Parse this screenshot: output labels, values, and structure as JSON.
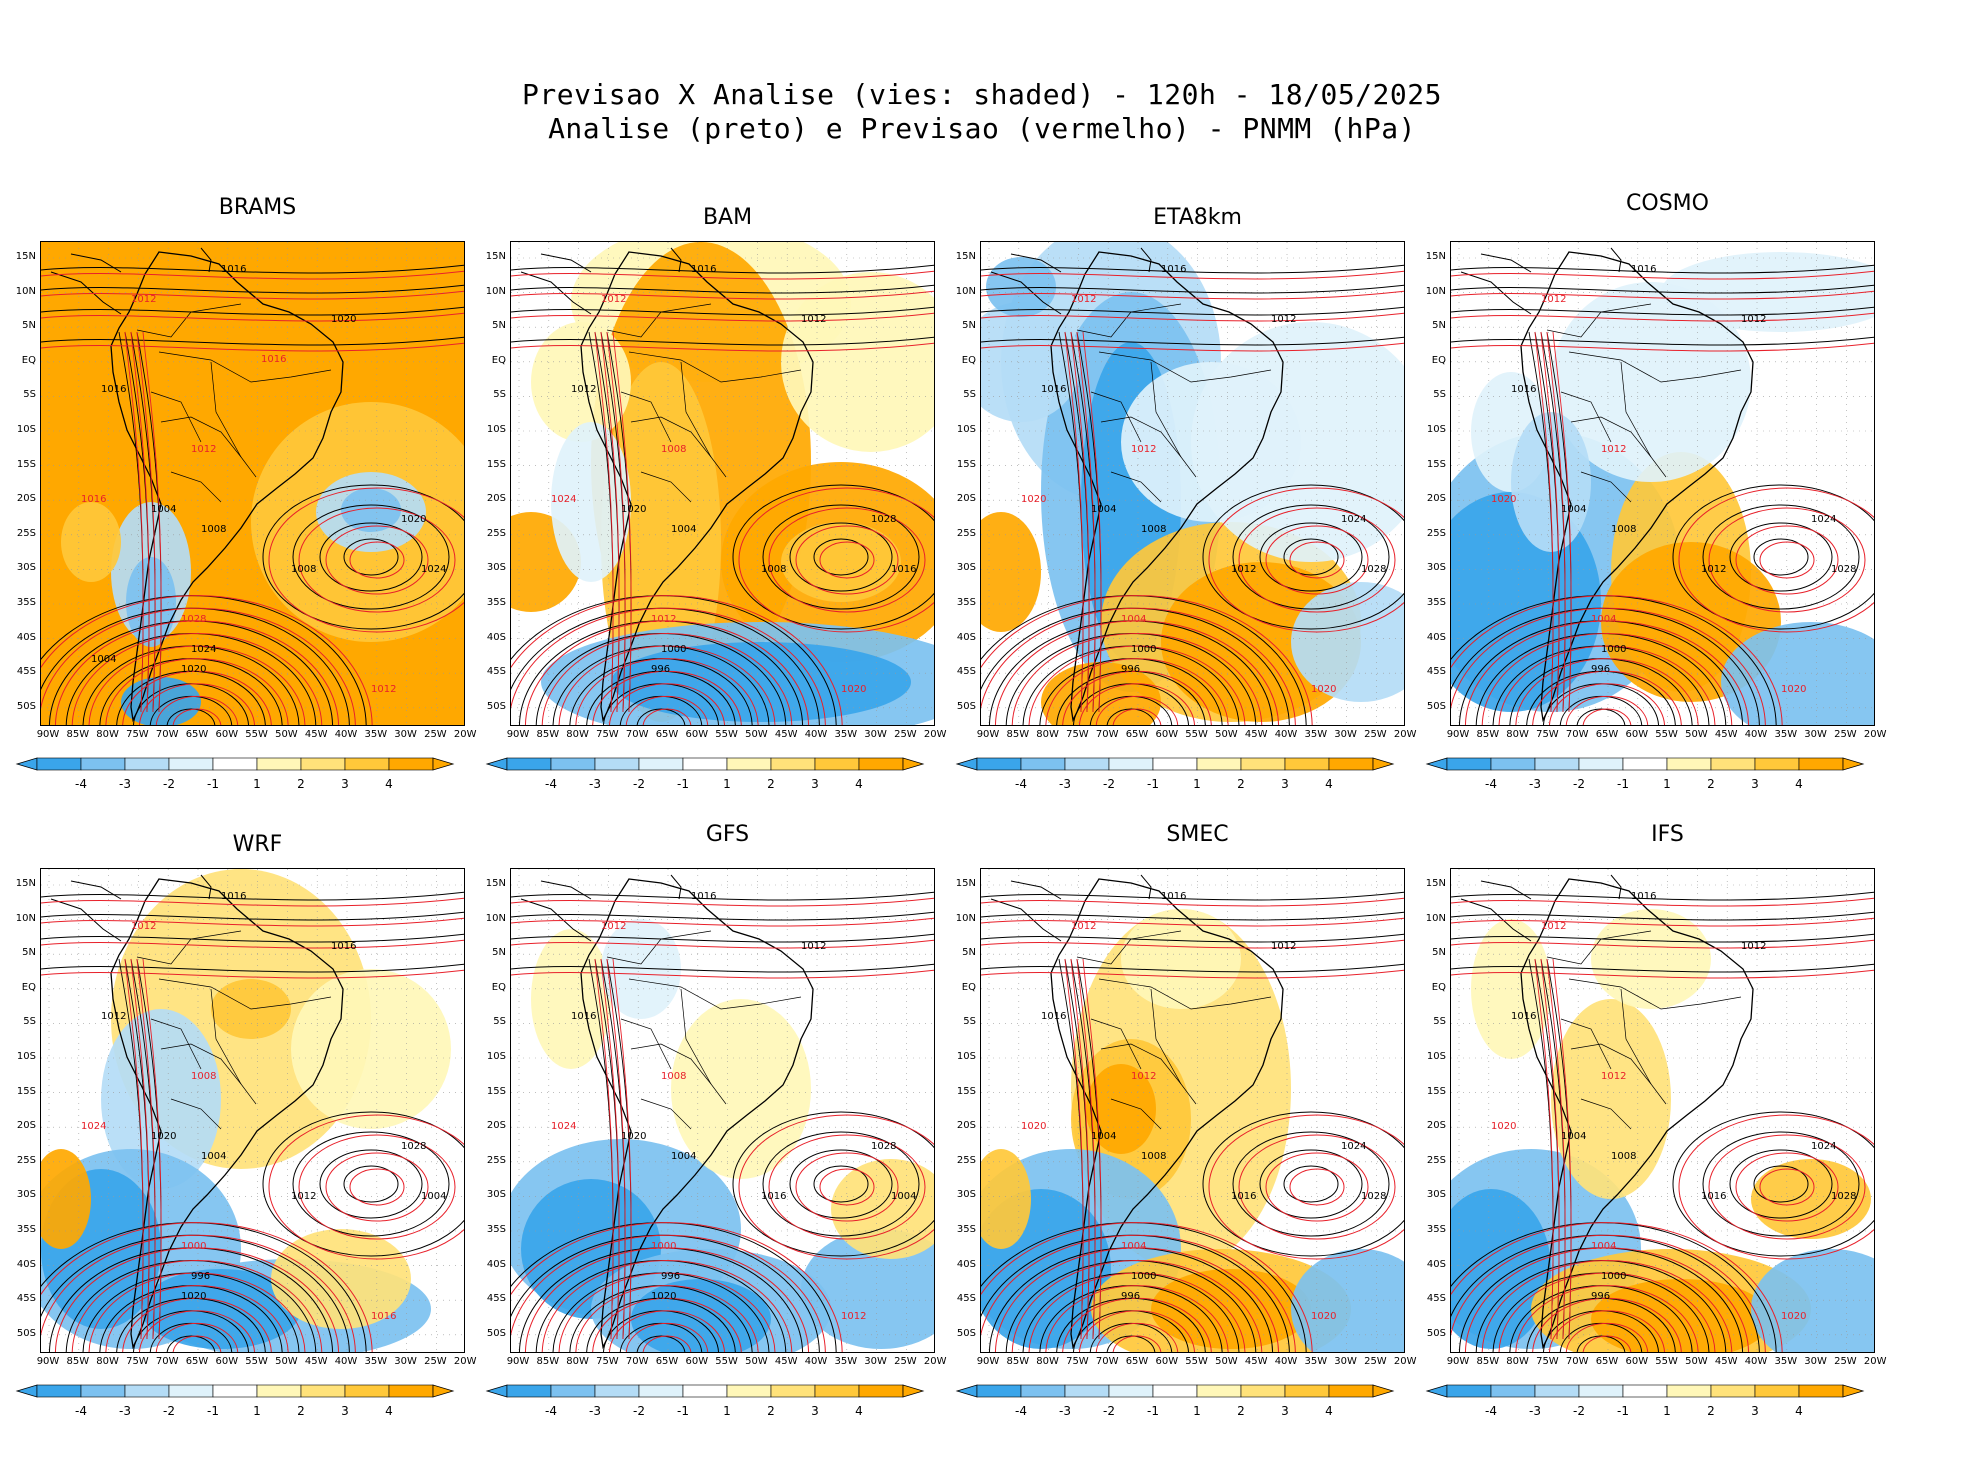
{
  "header": {
    "line1": "Previsao X Analise (vies: shaded) - 120h - 18/05/2025",
    "line2": "Analise (preto) e Previsao (vermelho) - PNMM (hPa)"
  },
  "colors": {
    "neg4": "#3aa5ea",
    "neg3": "#7cc1f0",
    "neg2": "#b4dcf6",
    "neg1": "#dff2fb",
    "pos1": "#fff7b8",
    "pos2": "#ffe27a",
    "pos3": "#ffc83a",
    "pos4": "#ffa800",
    "analysis_line": "#000000",
    "forecast_line": "#e8202a"
  },
  "lat_labels": [
    "15N",
    "10N",
    "5N",
    "EQ",
    "5S",
    "10S",
    "15S",
    "20S",
    "25S",
    "30S",
    "35S",
    "40S",
    "45S",
    "50S"
  ],
  "lon_labels": [
    "90W",
    "85W",
    "80W",
    "75W",
    "70W",
    "65W",
    "60W",
    "55W",
    "50W",
    "45W",
    "40W",
    "35W",
    "30W",
    "25W",
    "20W"
  ],
  "colorbar_labels": [
    "-4",
    "-3",
    "-2",
    "-1",
    "1",
    "2",
    "3",
    "4"
  ],
  "panels": [
    {
      "title": "BRAMS",
      "bias": "warm",
      "labels": [
        "1016",
        "1012",
        "1020",
        "1016",
        "1012",
        "1008",
        "1004",
        "1016",
        "1020",
        "1024",
        "1028",
        "1024",
        "1020",
        "1012",
        "1008",
        "1004",
        "1016"
      ]
    },
    {
      "title": "BAM",
      "bias": "mixed",
      "labels": [
        "1016",
        "1012",
        "1012",
        "1012",
        "1008",
        "1004",
        "1020",
        "1024",
        "1028",
        "1016",
        "1012",
        "1000",
        "996",
        "1020",
        "1008"
      ]
    },
    {
      "title": "ETA8km",
      "bias": "cold",
      "labels": [
        "1016",
        "1012",
        "1012",
        "1016",
        "1012",
        "1008",
        "1004",
        "1020",
        "1024",
        "1028",
        "1004",
        "1000",
        "996",
        "1020",
        "1012"
      ]
    },
    {
      "title": "COSMO",
      "bias": "coldwest",
      "labels": [
        "1016",
        "1012",
        "1012",
        "1016",
        "1012",
        "1008",
        "1004",
        "1020",
        "1024",
        "1028",
        "1004",
        "1000",
        "996",
        "1020",
        "1012"
      ]
    },
    {
      "title": "WRF",
      "bias": "mixedlight",
      "labels": [
        "1016",
        "1012",
        "1016",
        "1012",
        "1008",
        "1004",
        "1020",
        "1024",
        "1028",
        "1004",
        "1000",
        "996",
        "1020",
        "1016",
        "1012"
      ]
    },
    {
      "title": "GFS",
      "bias": "neutral",
      "labels": [
        "1016",
        "1012",
        "1012",
        "1016",
        "1008",
        "1004",
        "1020",
        "1024",
        "1028",
        "1004",
        "1000",
        "996",
        "1020",
        "1012",
        "1016"
      ]
    },
    {
      "title": "SMEC",
      "bias": "warmcenter",
      "labels": [
        "1016",
        "1012",
        "1012",
        "1016",
        "1012",
        "1008",
        "1004",
        "1020",
        "1024",
        "1028",
        "1004",
        "1000",
        "996",
        "1020",
        "1016"
      ]
    },
    {
      "title": "IFS",
      "bias": "neutralsouth",
      "labels": [
        "1016",
        "1012",
        "1012",
        "1016",
        "1012",
        "1008",
        "1004",
        "1020",
        "1024",
        "1028",
        "1004",
        "1000",
        "996",
        "1020",
        "1016"
      ]
    }
  ]
}
